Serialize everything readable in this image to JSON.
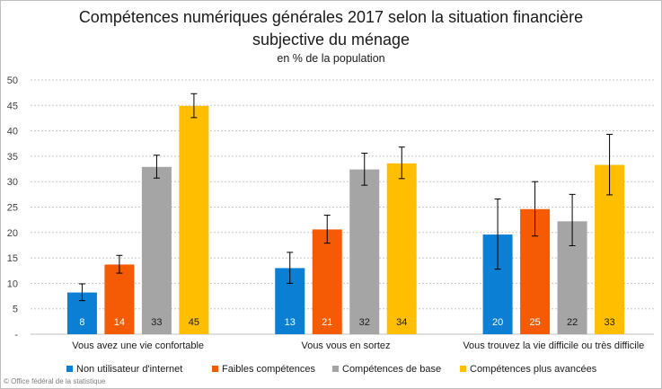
{
  "chart_data": {
    "type": "bar",
    "title_line1": "Compétences numériques générales 2017 selon la situation financière",
    "title_line2": "subjective du ménage",
    "subtitle": "en % de la population",
    "categories": [
      "Vous avez une vie confortable",
      "Vous vous en sortez",
      "Vous trouvez  la vie difficile ou très difficile"
    ],
    "y_ticks": [
      "-",
      "5",
      "10",
      "15",
      "20",
      "25",
      "30",
      "35",
      "40",
      "45",
      "50"
    ],
    "ylim": [
      0,
      50
    ],
    "grid": true,
    "legend_position": "bottom",
    "series": [
      {
        "name": "Non utilisateur d'internet",
        "color": "#0a7fd3",
        "label_color": "#ffffff",
        "values": [
          8.2,
          13.0,
          19.6
        ],
        "labels": [
          "8",
          "13",
          "20"
        ],
        "error_low": [
          6.6,
          10.0,
          12.8
        ],
        "error_high": [
          9.9,
          16.1,
          26.6
        ]
      },
      {
        "name": "Faibles compétences",
        "color": "#f55a05",
        "label_color": "#ffffff",
        "values": [
          13.7,
          20.6,
          24.6
        ],
        "labels": [
          "14",
          "21",
          "25"
        ],
        "error_low": [
          12.0,
          17.9,
          19.3
        ],
        "error_high": [
          15.5,
          23.4,
          30.0
        ]
      },
      {
        "name": "Compétences de base",
        "color": "#a5a5a5",
        "label_color": "#1a1a1a",
        "values": [
          32.9,
          32.4,
          22.2
        ],
        "labels": [
          "33",
          "32",
          "22"
        ],
        "error_low": [
          30.7,
          29.3,
          17.4
        ],
        "error_high": [
          35.2,
          35.6,
          27.5
        ]
      },
      {
        "name": "Compétences plus avancées",
        "color": "#ffbf00",
        "label_color": "#1a1a1a",
        "values": [
          44.9,
          33.6,
          33.3
        ],
        "labels": [
          "45",
          "34",
          "33"
        ],
        "error_low": [
          42.6,
          30.6,
          27.4
        ],
        "error_high": [
          47.3,
          36.8,
          39.3
        ]
      }
    ]
  },
  "footer": {
    "credit": "© Office fédéral de la statistique"
  }
}
